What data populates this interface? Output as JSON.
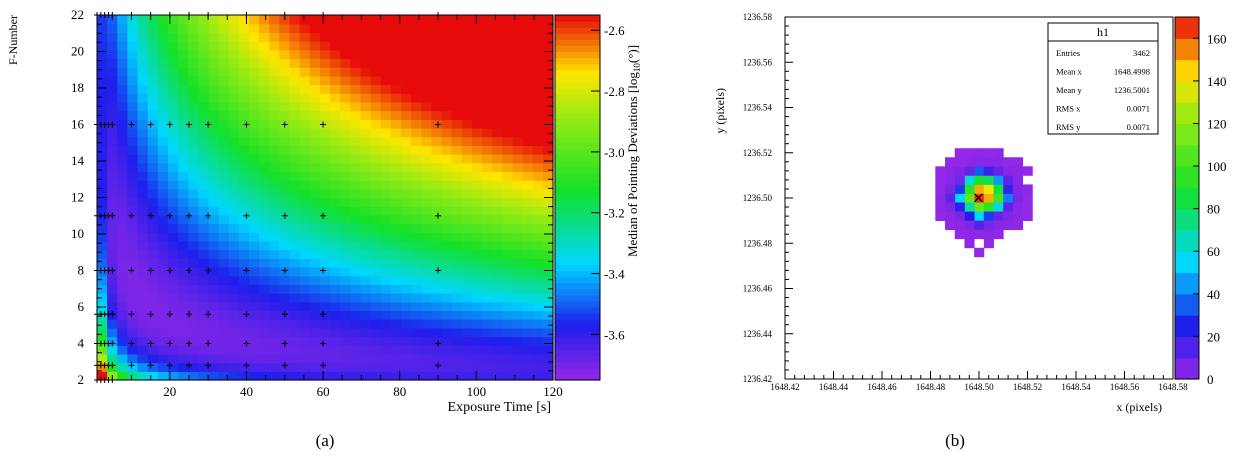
{
  "chart_data": [
    {
      "panel": "a",
      "type": "heatmap",
      "caption": "(a)",
      "xlabel": "Exposure Time [s]",
      "ylabel": "F-Number",
      "xlim": [
        1,
        120
      ],
      "ylim": [
        2,
        22
      ],
      "xticks": [
        20,
        40,
        60,
        80,
        100,
        120
      ],
      "yticks": [
        2,
        4,
        6,
        8,
        10,
        12,
        14,
        16,
        18,
        20,
        22
      ],
      "colorbar": {
        "label": "Median of Pointing Deviations [log",
        "label_sub": "10",
        "label_tail": "(°)]",
        "range": [
          -3.75,
          -2.55
        ],
        "ticks": [
          -3.6,
          -3.4,
          -3.2,
          -3.0,
          -2.8,
          -2.6
        ],
        "tick_labels": [
          "-3.6",
          "-3.4",
          "-3.2",
          "-3.0",
          "-2.8",
          "-2.6"
        ]
      },
      "measurement_exposures": [
        1,
        2,
        3,
        4,
        5,
        10,
        15,
        20,
        25,
        30,
        40,
        50,
        60,
        90
      ],
      "measurement_fnumbers": [
        2,
        2.8,
        4,
        5.6,
        8,
        11,
        16,
        22
      ],
      "measurement_limit": {
        "2.8": 90,
        "4": 90,
        "5.6": 60,
        "8": 90,
        "11": 90,
        "16": 90,
        "22": 90
      }
    },
    {
      "panel": "b",
      "type": "heatmap",
      "caption": "(b)",
      "xlabel": "x (pixels)",
      "ylabel": "y (pixels)",
      "xlim": [
        1648.42,
        1648.58
      ],
      "ylim": [
        1236.42,
        1236.58
      ],
      "xticks": [
        "1648.42",
        "1648.44",
        "1648.46",
        "1648.48",
        "1648.50",
        "1648.52",
        "1648.54",
        "1648.56",
        "1648.58"
      ],
      "yticks": [
        "1236.42",
        "1236.44",
        "1236.46",
        "1236.48",
        "1236.50",
        "1236.52",
        "1236.54",
        "1236.56",
        "1236.58"
      ],
      "colorbar": {
        "range": [
          0,
          170
        ],
        "ticks": [
          0,
          20,
          40,
          60,
          80,
          100,
          120,
          140,
          160
        ],
        "tick_labels": [
          "0",
          "20",
          "40",
          "60",
          "80",
          "100",
          "120",
          "140",
          "160"
        ]
      },
      "stats_box": {
        "title": "h1",
        "rows": [
          {
            "label": "Entries",
            "value": "3462"
          },
          {
            "label": "Mean x",
            "value": "1648.4998"
          },
          {
            "label": "Mean y",
            "value": "1236.5001"
          },
          {
            "label": "RMS x",
            "value": "0.0071"
          },
          {
            "label": "RMS y",
            "value": "0.0071"
          }
        ]
      },
      "mean": {
        "x": 1648.4998,
        "y": 1236.5001
      },
      "bin_width": 0.004
    }
  ]
}
